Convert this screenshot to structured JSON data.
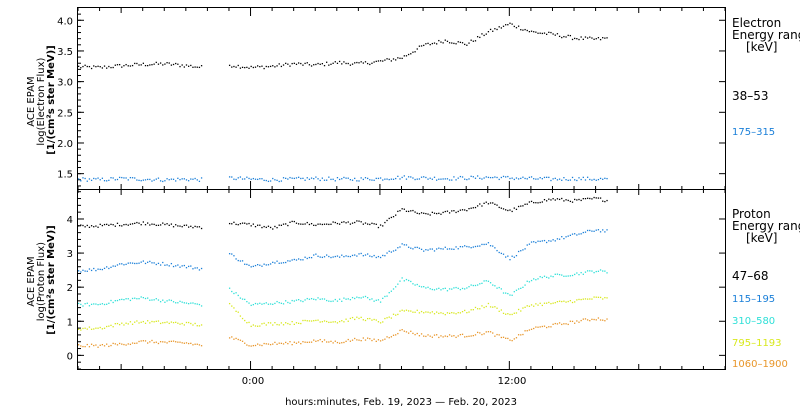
{
  "x_axis": {
    "label": "hours:minutes, Feb. 19, 2023 — Feb. 20, 2023",
    "tick_labels": [
      "0:00",
      "12:00"
    ]
  },
  "colors": {
    "black": "#000000",
    "blue": "#1a7fd8",
    "cyan": "#2fe0d8",
    "yellow": "#d8e81e",
    "orange": "#e8962a"
  },
  "chart_data": [
    {
      "type": "scatter",
      "panel": "electron",
      "ylabel_lines": [
        "ACE EPAM",
        "log(Electron Flux)",
        "[1/(cm²s ster MeV)]"
      ],
      "yticks": [
        "1.5",
        "2.0",
        "2.5",
        "3.0",
        "3.5",
        "4.0"
      ],
      "ylim": [
        1.25,
        4.2
      ],
      "xlim": [
        -8,
        22
      ],
      "x_unit": "hours relative to 0:00 Feb. 20, 2023",
      "legend_title_lines": [
        "Electron",
        "Energy range",
        "[keV]"
      ],
      "series": [
        {
          "name": "38–53",
          "color": "#000000",
          "x": [
            -8,
            -7,
            -6,
            -5,
            -4,
            -3,
            -2.2,
            -1,
            0,
            1,
            2,
            3,
            4,
            5,
            6,
            7,
            8,
            9,
            10,
            11,
            12,
            13,
            14,
            15,
            16,
            16.6
          ],
          "values": [
            3.25,
            3.24,
            3.27,
            3.29,
            3.3,
            3.27,
            3.24,
            3.28,
            3.24,
            3.26,
            3.3,
            3.28,
            3.32,
            3.3,
            3.34,
            3.4,
            3.6,
            3.68,
            3.62,
            3.82,
            3.95,
            3.82,
            3.78,
            3.72,
            3.7,
            3.72
          ]
        },
        {
          "name": "175–315",
          "color": "#1a7fd8",
          "x": [
            -8,
            -7,
            -6,
            -5,
            -4,
            -3,
            -2.2,
            -1,
            0,
            1,
            2,
            3,
            4,
            5,
            6,
            7,
            8,
            9,
            10,
            11,
            12,
            13,
            14,
            15,
            16,
            16.6
          ],
          "values": [
            1.42,
            1.41,
            1.43,
            1.42,
            1.41,
            1.42,
            1.41,
            1.44,
            1.42,
            1.41,
            1.42,
            1.43,
            1.42,
            1.42,
            1.43,
            1.45,
            1.44,
            1.43,
            1.44,
            1.45,
            1.44,
            1.43,
            1.42,
            1.43,
            1.42,
            1.42
          ]
        }
      ]
    },
    {
      "type": "scatter",
      "panel": "proton",
      "ylabel_lines": [
        "ACE EPAM",
        "log(Proton Flux)",
        "[1/(cm²s ster MeV)]"
      ],
      "yticks": [
        "0",
        "1",
        "2",
        "3",
        "4"
      ],
      "ylim": [
        -0.4,
        4.85
      ],
      "xlim": [
        -8,
        22
      ],
      "x_unit": "hours relative to 0:00 Feb. 20, 2023",
      "legend_title_lines": [
        "Proton",
        "Energy range",
        "[keV]"
      ],
      "series": [
        {
          "name": "47–68",
          "color": "#000000",
          "x": [
            -8,
            -7,
            -6,
            -5,
            -4,
            -3,
            -2.2,
            -1,
            0,
            1,
            2,
            3,
            4,
            5,
            6,
            7,
            8,
            9,
            10,
            11,
            12,
            13,
            14,
            15,
            16,
            16.6
          ],
          "values": [
            3.8,
            3.82,
            3.86,
            3.9,
            3.85,
            3.8,
            3.78,
            3.9,
            3.85,
            3.75,
            3.92,
            3.85,
            3.9,
            3.92,
            3.8,
            4.3,
            4.15,
            4.2,
            4.3,
            4.5,
            4.25,
            4.5,
            4.6,
            4.55,
            4.62,
            4.55
          ]
        },
        {
          "name": "115–195",
          "color": "#1a7fd8",
          "x": [
            -8,
            -7,
            -6,
            -5,
            -4,
            -3,
            -2.2,
            -1,
            0,
            1,
            2,
            3,
            4,
            5,
            6,
            7,
            8,
            9,
            10,
            11,
            12,
            13,
            14,
            15,
            16,
            16.6
          ],
          "values": [
            2.5,
            2.55,
            2.7,
            2.75,
            2.7,
            2.62,
            2.55,
            3.0,
            2.6,
            2.75,
            2.8,
            2.95,
            2.9,
            2.98,
            2.9,
            3.25,
            3.1,
            3.15,
            3.2,
            3.3,
            2.85,
            3.3,
            3.4,
            3.55,
            3.7,
            3.65
          ]
        },
        {
          "name": "310–580",
          "color": "#2fe0d8",
          "x": [
            -8,
            -7,
            -6,
            -5,
            -4,
            -3,
            -2.2,
            -1,
            0,
            1,
            2,
            3,
            4,
            5,
            6,
            7,
            8,
            9,
            10,
            11,
            12,
            13,
            14,
            15,
            16,
            16.6
          ],
          "values": [
            1.5,
            1.52,
            1.65,
            1.7,
            1.62,
            1.55,
            1.5,
            1.95,
            1.5,
            1.55,
            1.6,
            1.68,
            1.62,
            1.75,
            1.6,
            2.25,
            2.0,
            1.95,
            2.0,
            2.2,
            1.75,
            2.25,
            2.35,
            2.4,
            2.5,
            2.45
          ]
        },
        {
          "name": "795–1193",
          "color": "#d8e81e",
          "x": [
            -8,
            -7,
            -6,
            -5,
            -4,
            -3,
            -2.2,
            -1,
            0,
            1,
            2,
            3,
            4,
            5,
            6,
            7,
            8,
            9,
            10,
            11,
            12,
            13,
            14,
            15,
            16,
            16.6
          ],
          "values": [
            0.8,
            0.82,
            0.95,
            1.0,
            0.98,
            0.95,
            0.9,
            1.5,
            0.9,
            0.95,
            0.97,
            1.05,
            1.0,
            1.12,
            1.0,
            1.3,
            1.3,
            1.25,
            1.3,
            1.5,
            1.2,
            1.5,
            1.55,
            1.62,
            1.7,
            1.68
          ]
        },
        {
          "name": "1060–1900",
          "color": "#e8962a",
          "x": [
            -8,
            -7,
            -6,
            -5,
            -4,
            -3,
            -2.2,
            -1,
            0,
            1,
            2,
            3,
            4,
            5,
            6,
            7,
            8,
            9,
            10,
            11,
            12,
            13,
            14,
            15,
            16,
            16.6
          ],
          "values": [
            0.3,
            0.3,
            0.35,
            0.42,
            0.4,
            0.38,
            0.3,
            0.55,
            0.32,
            0.36,
            0.38,
            0.45,
            0.4,
            0.5,
            0.45,
            0.75,
            0.6,
            0.58,
            0.6,
            0.7,
            0.45,
            0.8,
            0.9,
            1.0,
            1.1,
            1.05
          ]
        }
      ]
    }
  ]
}
